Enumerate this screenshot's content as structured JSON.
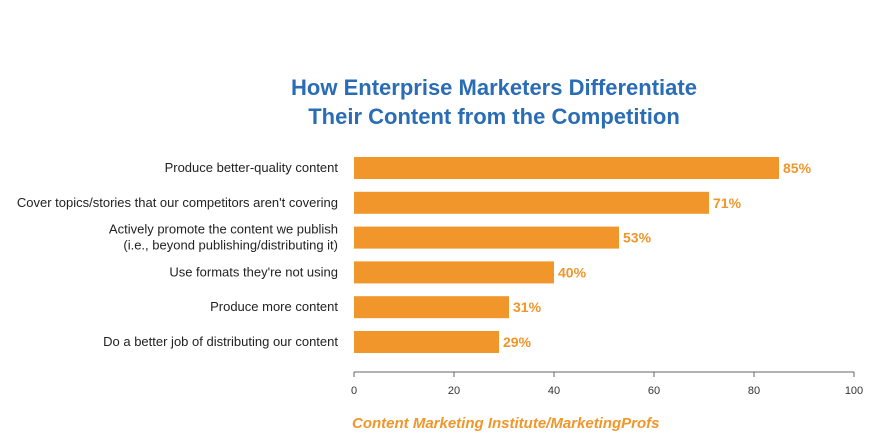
{
  "chart_data": {
    "type": "bar",
    "orientation": "horizontal",
    "title_lines": [
      "How Enterprise Marketers Differentiate",
      "Their Content from the Competition"
    ],
    "categories": [
      [
        "Produce better-quality content"
      ],
      [
        "Cover topics/stories that our competitors aren't covering"
      ],
      [
        "Actively promote the content we publish",
        "(i.e., beyond publishing/distributing it)"
      ],
      [
        "Use formats they're not using"
      ],
      [
        "Produce more content"
      ],
      [
        "Do a better job of distributing our content"
      ]
    ],
    "values": [
      85,
      71,
      53,
      40,
      31,
      29
    ],
    "value_labels": [
      "85%",
      "71%",
      "53%",
      "40%",
      "31%",
      "29%"
    ],
    "xlim": [
      0,
      100
    ],
    "xticks": [
      0,
      20,
      40,
      60,
      80,
      100
    ],
    "grid": false,
    "bar_color": "#f0962a",
    "label_color": "#f0962a",
    "title_color": "#2a6db5"
  },
  "source": "Content Marketing Institute/MarketingProfs"
}
